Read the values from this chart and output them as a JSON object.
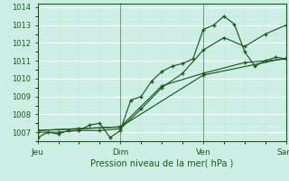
{
  "xlabel": "Pression niveau de la mer( hPa )",
  "bg_color": "#cceee4",
  "grid_color": "#b8ddd4",
  "line_color": "#1a5c1a",
  "xlim": [
    0,
    72
  ],
  "ylim": [
    1006.5,
    1014.2
  ],
  "yticks": [
    1007,
    1008,
    1009,
    1010,
    1011,
    1012,
    1013,
    1014
  ],
  "xtick_positions": [
    0,
    24,
    48,
    72
  ],
  "xtick_labels": [
    "Jeu",
    "Dim",
    "Ven",
    "Sam"
  ],
  "vlines": [
    0,
    24,
    48,
    72
  ],
  "series": [
    {
      "x": [
        0,
        3,
        6,
        9,
        12,
        15,
        18,
        21,
        24,
        27,
        30,
        33,
        36,
        39,
        42,
        45,
        48,
        51,
        54,
        57,
        60,
        63,
        66,
        69,
        72
      ],
      "y": [
        1006.7,
        1007.0,
        1006.9,
        1007.1,
        1007.1,
        1007.4,
        1007.5,
        1006.7,
        1007.1,
        1008.8,
        1009.0,
        1009.85,
        1010.4,
        1010.7,
        1010.85,
        1011.1,
        1012.75,
        1013.0,
        1013.5,
        1013.05,
        1011.5,
        1010.7,
        1011.0,
        1011.2,
        1011.1
      ]
    },
    {
      "x": [
        0,
        6,
        12,
        18,
        24,
        30,
        36,
        42,
        48,
        54,
        60,
        66,
        72
      ],
      "y": [
        1007.0,
        1007.0,
        1007.1,
        1007.1,
        1007.2,
        1008.3,
        1009.5,
        1010.3,
        1011.6,
        1012.3,
        1011.8,
        1012.5,
        1013.0
      ]
    },
    {
      "x": [
        0,
        12,
        24,
        36,
        48,
        60,
        72
      ],
      "y": [
        1007.1,
        1007.2,
        1007.3,
        1009.6,
        1010.3,
        1010.9,
        1011.1
      ]
    },
    {
      "x": [
        0,
        24,
        48,
        72
      ],
      "y": [
        1007.1,
        1007.3,
        1010.2,
        1011.15
      ]
    }
  ]
}
